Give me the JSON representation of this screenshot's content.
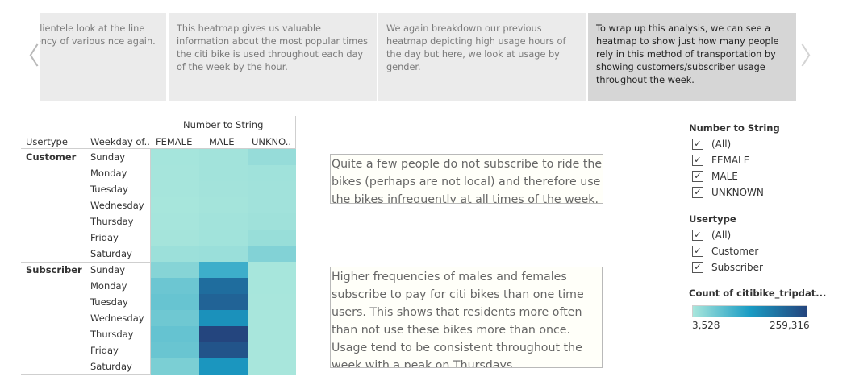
{
  "story": {
    "points": [
      {
        "text": "derstand the clientele look at the line graph e frequency of various nce again."
      },
      {
        "text": "This heatmap gives us valuable information about the most popular times the citi bike is used throughout each day of the week by the hour."
      },
      {
        "text": "We again breakdown our previous heatmap depicting high usage hours of the day but here, we look at usage by gender."
      },
      {
        "text": "To wrap up this analysis,  we can see a heatmap to show just how many people rely in this method of transportation by showing customers/subscriber usage throughout the week."
      }
    ],
    "prev_icon": "chevron-left-icon",
    "next_icon": "chevron-right-icon",
    "prev_glyph": "〈",
    "next_glyph": "〉"
  },
  "heatmap": {
    "column_group_header": "Number to String",
    "row_headers": [
      "Usertype",
      "Weekday of.."
    ],
    "columns": [
      "FEMALE",
      "MALE",
      "UNKNO.."
    ],
    "groups": [
      {
        "label": "Customer",
        "days": [
          "Sunday",
          "Monday",
          "Tuesday",
          "Wednesday",
          "Thursday",
          "Friday",
          "Saturday"
        ]
      },
      {
        "label": "Subscriber",
        "days": [
          "Sunday",
          "Monday",
          "Tuesday",
          "Wednesday",
          "Thursday",
          "Friday",
          "Saturday"
        ]
      }
    ],
    "color_min": "#a8e6dc",
    "color_mid": "#1a9cc4",
    "color_max": "#24457e"
  },
  "annotations": [
    {
      "text": "Quite a few people do not subscribe to ride the bikes (perhaps are not local) and therefore use the bikes infrequently at all times of the week."
    },
    {
      "text": "Higher frequencies of males and females subscribe to pay for citi bikes than one time users. This shows that residents more often than not use these bikes more than once. Usage tend to be consistent throughout the week with a peak on Thursdays."
    }
  ],
  "filters": {
    "number_to_string": {
      "title": "Number to String",
      "items": [
        {
          "label": "(All)",
          "checked": true
        },
        {
          "label": "FEMALE",
          "checked": true
        },
        {
          "label": "MALE",
          "checked": true
        },
        {
          "label": "UNKNOWN",
          "checked": true
        }
      ]
    },
    "usertype": {
      "title": "Usertype",
      "items": [
        {
          "label": "(All)",
          "checked": true
        },
        {
          "label": "Customer",
          "checked": true
        },
        {
          "label": "Subscriber",
          "checked": true
        }
      ]
    },
    "check_glyph": "✓"
  },
  "legend": {
    "title": "Count of citibike_tripdat...",
    "min_label": "3,528",
    "max_label": "259,316"
  },
  "chart_data": {
    "type": "heatmap",
    "title": "",
    "x_categories": [
      "FEMALE",
      "MALE",
      "UNKNO.."
    ],
    "y_groups": [
      "Customer",
      "Subscriber"
    ],
    "y_categories": [
      "Sunday",
      "Monday",
      "Tuesday",
      "Wednesday",
      "Thursday",
      "Friday",
      "Saturday"
    ],
    "color_range": [
      3528,
      259316
    ],
    "values": {
      "Customer": [
        [
          6000,
          9000,
          20000
        ],
        [
          5500,
          8500,
          11000
        ],
        [
          5000,
          8000,
          10000
        ],
        [
          4200,
          7500,
          9800
        ],
        [
          5200,
          9000,
          12000
        ],
        [
          6500,
          9500,
          18000
        ],
        [
          14000,
          16000,
          38000
        ]
      ],
      "Subscriber": [
        [
          34000,
          100000,
          4200
        ],
        [
          58000,
          200000,
          4000
        ],
        [
          62000,
          215000,
          3900
        ],
        [
          55000,
          148000,
          3800
        ],
        [
          64000,
          259316,
          3700
        ],
        [
          60000,
          238000,
          3700
        ],
        [
          44000,
          140000,
          3528
        ]
      ]
    }
  }
}
